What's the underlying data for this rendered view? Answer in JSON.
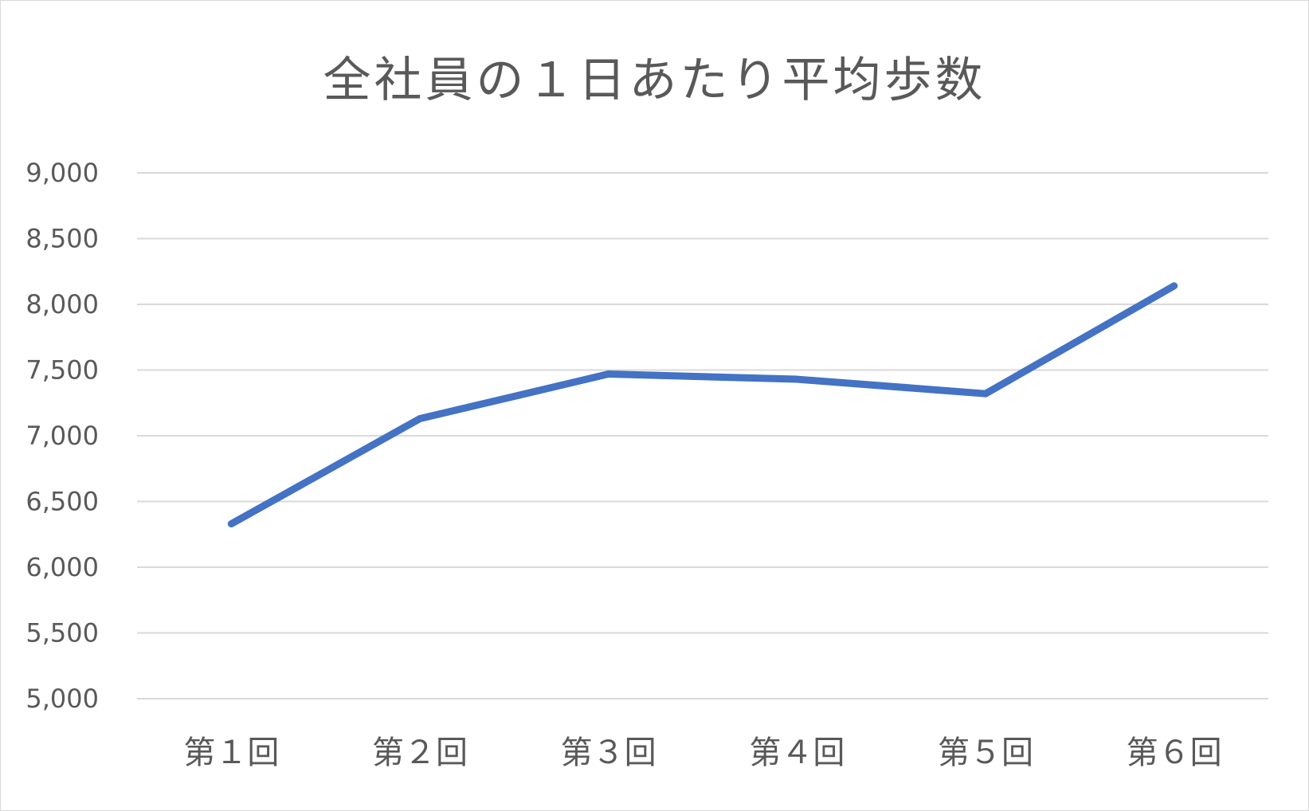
{
  "chart_data": {
    "type": "line",
    "title": "全社員の１日あたり平均歩数",
    "xlabel": "",
    "ylabel": "",
    "categories": [
      "第１回",
      "第２回",
      "第３回",
      "第４回",
      "第５回",
      "第６回"
    ],
    "series": [
      {
        "values": [
          6330,
          7130,
          7470,
          7430,
          7320,
          8140
        ],
        "color": "#4472c4"
      }
    ],
    "ylim": [
      5000,
      9000
    ],
    "yticks": [
      5000,
      5500,
      6000,
      6500,
      7000,
      7500,
      8000,
      8500,
      9000
    ],
    "ytick_labels": [
      "5,000",
      "5,500",
      "6,000",
      "6,500",
      "7,000",
      "7,500",
      "8,000",
      "8,500",
      "9,000"
    ],
    "grid": true,
    "legend": "none",
    "gridline_color": "#d9d9d9",
    "text_color": "#595959"
  }
}
